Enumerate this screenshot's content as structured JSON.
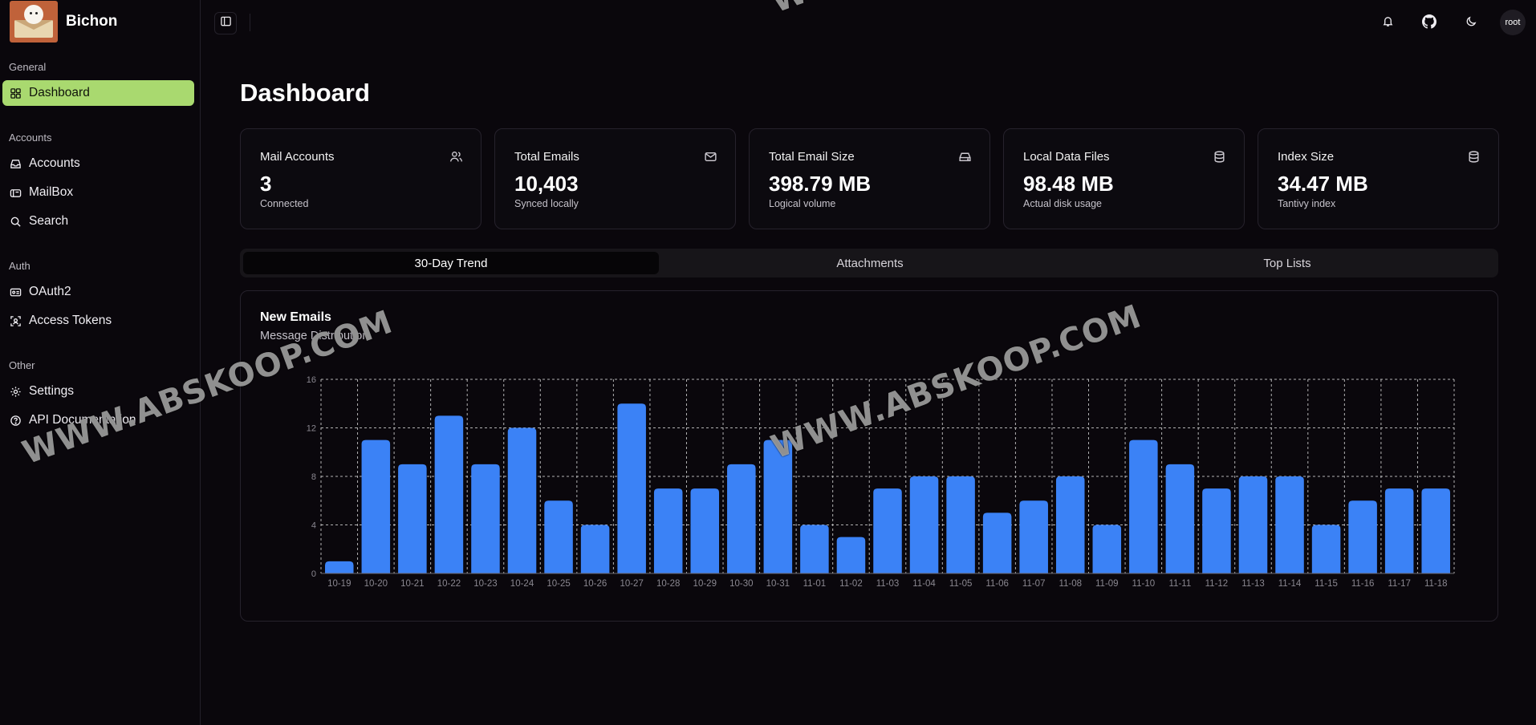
{
  "app": {
    "name": "Bichon"
  },
  "sidebar": {
    "groups": [
      {
        "label": "General",
        "items": [
          {
            "label": "Dashboard",
            "icon": "dashboard-icon",
            "active": true
          }
        ]
      },
      {
        "label": "Accounts",
        "items": [
          {
            "label": "Accounts",
            "icon": "inbox-icon"
          },
          {
            "label": "MailBox",
            "icon": "mailbox-icon"
          },
          {
            "label": "Search",
            "icon": "search-icon"
          }
        ]
      },
      {
        "label": "Auth",
        "items": [
          {
            "label": "OAuth2",
            "icon": "id-card-icon"
          },
          {
            "label": "Access Tokens",
            "icon": "token-icon"
          }
        ]
      },
      {
        "label": "Other",
        "items": [
          {
            "label": "Settings",
            "icon": "gear-icon"
          },
          {
            "label": "API Documentation",
            "icon": "help-circle-icon"
          }
        ]
      }
    ]
  },
  "topbar": {
    "user": "root"
  },
  "page": {
    "title": "Dashboard"
  },
  "stats": [
    {
      "label": "Mail Accounts",
      "value": "3",
      "sub": "Connected",
      "icon": "users-icon"
    },
    {
      "label": "Total Emails",
      "value": "10,403",
      "sub": "Synced locally",
      "icon": "mail-icon"
    },
    {
      "label": "Total Email Size",
      "value": "398.79 MB",
      "sub": "Logical volume",
      "icon": "hard-drive-icon"
    },
    {
      "label": "Local Data Files",
      "value": "98.48 MB",
      "sub": "Actual disk usage",
      "icon": "database-icon"
    },
    {
      "label": "Index Size",
      "value": "34.47 MB",
      "sub": "Tantivy index",
      "icon": "database-icon"
    }
  ],
  "tabs": [
    {
      "label": "30-Day Trend",
      "active": true
    },
    {
      "label": "Attachments"
    },
    {
      "label": "Top Lists"
    }
  ],
  "panel": {
    "title": "New Emails",
    "subtitle": "Message Distribution"
  },
  "colors": {
    "accent": "#a9d96f",
    "bar": "#3b82f6",
    "background": "#0a070c"
  },
  "watermark": "WWW.ABSKOOP.COM",
  "chart_data": {
    "type": "bar",
    "categories": [
      "10-19",
      "10-20",
      "10-21",
      "10-22",
      "10-23",
      "10-24",
      "10-25",
      "10-26",
      "10-27",
      "10-28",
      "10-29",
      "10-30",
      "10-31",
      "11-01",
      "11-02",
      "11-03",
      "11-04",
      "11-05",
      "11-06",
      "11-07",
      "11-08",
      "11-09",
      "11-10",
      "11-11",
      "11-12",
      "11-13",
      "11-14",
      "11-15",
      "11-16",
      "11-17",
      "11-18"
    ],
    "values": [
      1,
      11,
      9,
      13,
      9,
      12,
      6,
      4,
      14,
      7,
      7,
      9,
      11,
      4,
      3,
      7,
      8,
      8,
      5,
      6,
      8,
      4,
      11,
      9,
      7,
      8,
      8,
      4,
      6,
      7,
      7
    ],
    "ylim": [
      0,
      16
    ],
    "yticks": [
      0,
      4,
      8,
      12,
      16
    ],
    "grid": true
  }
}
